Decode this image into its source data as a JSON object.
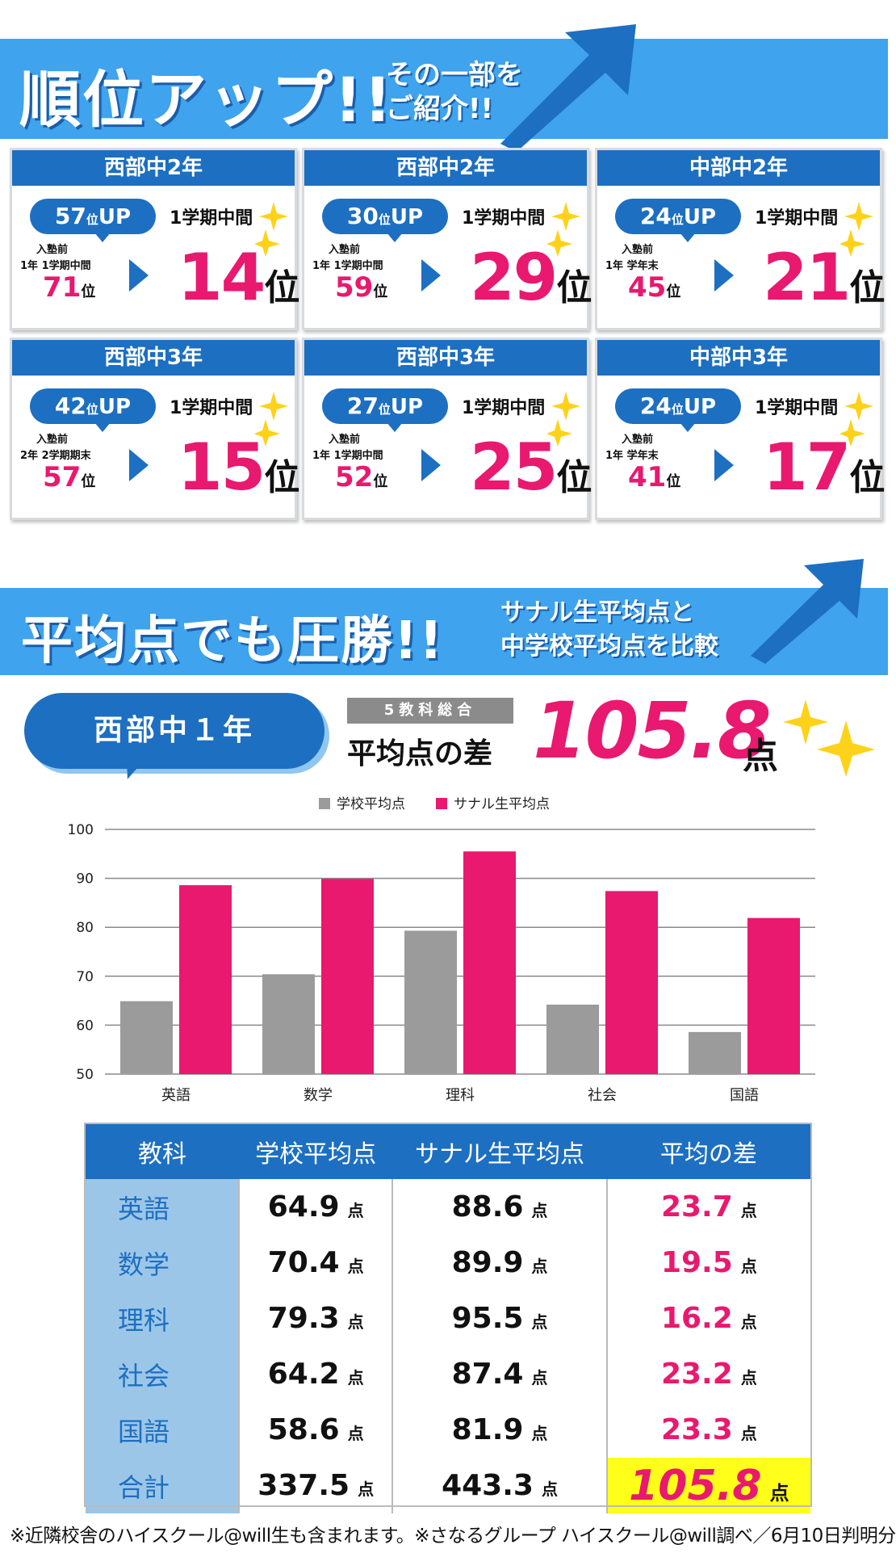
{
  "banner1": {
    "title": "順位アップ!!",
    "sub_line1": "その一部を",
    "sub_line2": "ご紹介!!"
  },
  "cards": [
    {
      "school": "西部中2年",
      "up_num": "57",
      "up_unit": "位",
      "up_text": "UP",
      "period": "1学期中間",
      "before_label": "入塾前",
      "before_term": "1年 1学期中間",
      "before_rank": "71",
      "before_unit": "位",
      "after_rank": "14",
      "after_unit": "位"
    },
    {
      "school": "西部中2年",
      "up_num": "30",
      "up_unit": "位",
      "up_text": "UP",
      "period": "1学期中間",
      "before_label": "入塾前",
      "before_term": "1年 1学期中間",
      "before_rank": "59",
      "before_unit": "位",
      "after_rank": "29",
      "after_unit": "位"
    },
    {
      "school": "中部中2年",
      "up_num": "24",
      "up_unit": "位",
      "up_text": "UP",
      "period": "1学期中間",
      "before_label": "入塾前",
      "before_term": "1年 学年末",
      "before_rank": "45",
      "before_unit": "位",
      "after_rank": "21",
      "after_unit": "位"
    },
    {
      "school": "西部中3年",
      "up_num": "42",
      "up_unit": "位",
      "up_text": "UP",
      "period": "1学期中間",
      "before_label": "入塾前",
      "before_term": "2年 2学期期末",
      "before_rank": "57",
      "before_unit": "位",
      "after_rank": "15",
      "after_unit": "位"
    },
    {
      "school": "西部中3年",
      "up_num": "27",
      "up_unit": "位",
      "up_text": "UP",
      "period": "1学期中間",
      "before_label": "入塾前",
      "before_term": "1年 1学期中間",
      "before_rank": "52",
      "before_unit": "位",
      "after_rank": "25",
      "after_unit": "位"
    },
    {
      "school": "中部中3年",
      "up_num": "24",
      "up_unit": "位",
      "up_text": "UP",
      "period": "1学期中間",
      "before_label": "入塾前",
      "before_term": "1年 学年末",
      "before_rank": "41",
      "before_unit": "位",
      "after_rank": "17",
      "after_unit": "位"
    }
  ],
  "banner2": {
    "title": "平均点でも圧勝!!",
    "sub_line1": "サナル生平均点と",
    "sub_line2": "中学校平均点を比較"
  },
  "avg": {
    "school": "西部中１年",
    "tag": "5教科総合",
    "diff_label": "平均点の差",
    "diff_value": "105.8",
    "diff_unit": "点"
  },
  "colors": {
    "blue": "#1d6fc1",
    "light_blue": "#3fa3ee",
    "pink": "#e8196e",
    "gray": "#9b9b9b",
    "yellow": "#ffff1a"
  },
  "chart_data": {
    "type": "bar",
    "categories": [
      "英語",
      "数学",
      "理科",
      "社会",
      "国語"
    ],
    "series": [
      {
        "name": "学校平均点",
        "values": [
          64.9,
          70.4,
          79.3,
          64.2,
          58.6
        ],
        "color": "#9b9b9b"
      },
      {
        "name": "サナル生平均点",
        "values": [
          88.6,
          89.9,
          95.5,
          87.4,
          81.9
        ],
        "color": "#e8196e"
      }
    ],
    "ylim": [
      50,
      100
    ],
    "yticks": [
      50,
      60,
      70,
      80,
      90,
      100
    ],
    "grid": true,
    "legend": "top-center"
  },
  "table": {
    "headers": [
      "教科",
      "学校平均点",
      "サナル生平均点",
      "平均の差"
    ],
    "unit": "点",
    "rows": [
      {
        "subject": "英語",
        "school": "64.9",
        "sanaru": "88.6",
        "diff": "23.7"
      },
      {
        "subject": "数学",
        "school": "70.4",
        "sanaru": "89.9",
        "diff": "19.5"
      },
      {
        "subject": "理科",
        "school": "79.3",
        "sanaru": "95.5",
        "diff": "16.2"
      },
      {
        "subject": "社会",
        "school": "64.2",
        "sanaru": "87.4",
        "diff": "23.2"
      },
      {
        "subject": "国語",
        "school": "58.6",
        "sanaru": "81.9",
        "diff": "23.3"
      },
      {
        "subject": "合計",
        "school": "337.5",
        "sanaru": "443.3",
        "diff": "105.8"
      }
    ]
  },
  "footer": "※近隣校舎のハイスクール@will生も含まれます。※さなるグループ ハイスクール@will調べ／6月10日判明分"
}
